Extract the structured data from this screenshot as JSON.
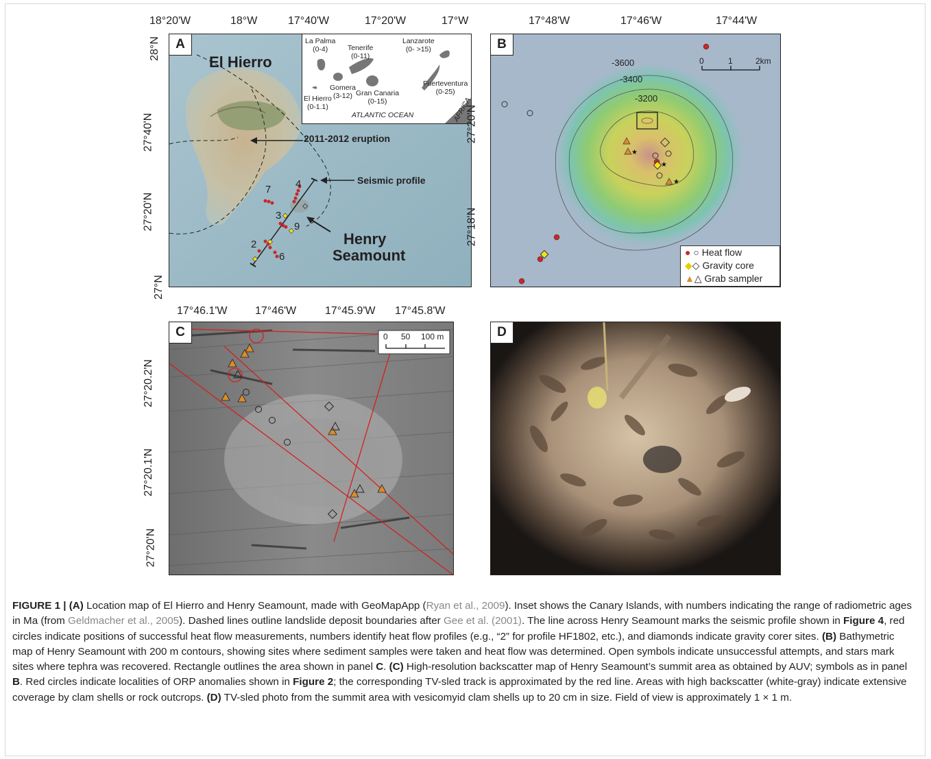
{
  "panels": {
    "A": {
      "label": "A",
      "top_ticks": [
        "18°20'W",
        "18°W",
        "17°40'W",
        "17°20'W",
        "17°W"
      ],
      "left_ticks": [
        "28°N",
        "27°40'N",
        "27°20'N",
        "27°N"
      ],
      "title": "El Hierro",
      "eruption_label": "2011-2012 eruption",
      "seismic_label": "Seismic profile",
      "seamount_label_1": "Henry",
      "seamount_label_2": "Seamount",
      "profile_numbers": [
        "7",
        "4",
        "3",
        "9",
        "2",
        "6"
      ],
      "inset": {
        "islands": [
          {
            "name": "La Palma",
            "age": "(0-4)"
          },
          {
            "name": "Tenerife",
            "age": "(0-11)"
          },
          {
            "name": "Lanzarote",
            "age": "(0- >15)"
          },
          {
            "name": "Gomera",
            "age": "(3-12)"
          },
          {
            "name": "Fuerteventura",
            "age": "(0-25)"
          },
          {
            "name": "El Hierro",
            "age": "(0-1.1)"
          },
          {
            "name": "Gran Canaria",
            "age": "(0-15)"
          }
        ],
        "ocean": "ATLANTIC OCEAN",
        "continent": "AFRICA"
      }
    },
    "B": {
      "label": "B",
      "top_ticks": [
        "17°48'W",
        "17°46'W",
        "17°44'W"
      ],
      "left_ticks": [
        "27°20'N",
        "27°18'N"
      ],
      "contours": [
        "-3600",
        "-3400",
        "-3200"
      ],
      "scale": [
        "0",
        "1",
        "2km"
      ],
      "legend": [
        "Heat flow",
        "Gravity core",
        "Grab sampler"
      ]
    },
    "C": {
      "label": "C",
      "top_ticks": [
        "17°46.1'W",
        "17°46'W",
        "17°45.9'W",
        "17°45.8'W"
      ],
      "left_ticks": [
        "27°20.2'N",
        "27°20.1'N",
        "27°20'N"
      ],
      "scale": [
        "0",
        "50",
        "100 m"
      ]
    },
    "D": {
      "label": "D"
    }
  },
  "caption": {
    "figure": "FIGURE 1 |",
    "a_tag": "(A)",
    "a_text_1": "Location map of El Hierro and Henry Seamount, made with GeoMapApp (",
    "cite_1": "Ryan et al., 2009",
    "a_text_2": "). Inset shows the Canary Islands, with numbers indicating the range of radiometric ages in Ma (from ",
    "cite_2": "Geldmacher et al., 2005",
    "a_text_3": "). Dashed lines outline landslide deposit boundaries after ",
    "cite_3": "Gee et al. (2001)",
    "a_text_4": ". The line across Henry Seamount marks the seismic profile shown in ",
    "fig4": "Figure 4",
    "a_text_5": ", red circles indicate positions of successful heat flow measurements, numbers identify heat flow profiles (e.g., “2” for profile HF1802, etc.), and diamonds indicate gravity corer sites. ",
    "b_tag": "(B)",
    "b_text_1": " Bathymetric map of Henry Seamount with 200 m contours, showing sites where sediment samples were taken and heat flow was determined. Open symbols indicate unsuccessful attempts, and stars mark sites where tephra was recovered. Rectangle outlines the area shown in panel ",
    "panel_c": "C",
    "b_text_2": ". ",
    "c_tag": "(C)",
    "c_text_1": " High-resolution backscatter map of Henry Seamount’s summit area as obtained by AUV; symbols as in panel ",
    "panel_b": "B",
    "c_text_2": ". Red circles indicate localities of ORP anomalies shown in ",
    "fig2": "Figure 2",
    "c_text_3": "; the corresponding TV-sled track is approximated by the red line. Areas with high backscatter (white-gray) indicate extensive coverage by clam shells or rock outcrops. ",
    "d_tag": "(D)",
    "d_text": " TV-sled photo from the summit area with vesicomyid clam shells up to 20 cm in size. Field of view is approximately 1 × 1 m."
  },
  "colors": {
    "heat_flow_red": "#c62828",
    "gravity_yellow": "#f2e21a",
    "grab_orange": "#d98d2b",
    "track_red": "#d32020"
  }
}
